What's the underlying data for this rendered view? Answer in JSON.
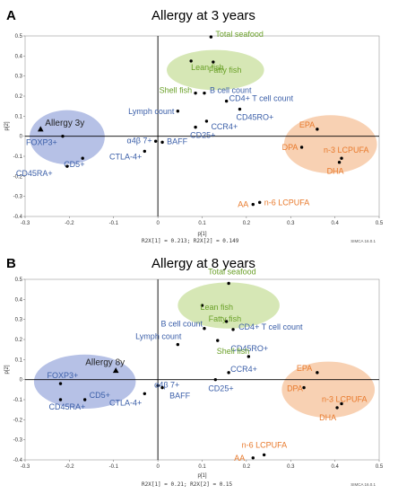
{
  "colors": {
    "blue_text": "#3a5ea8",
    "green_text": "#6aa028",
    "orange_text": "#e8792b",
    "blue_fill": "#a9b6e2",
    "green_fill": "#cfe3a8",
    "orange_fill": "#f7c9a6",
    "axis": "#000000"
  },
  "chart_data": [
    {
      "type": "scatter",
      "panel_letter": "A",
      "title": "Allergy at 3 years",
      "xlabel": "p[1]",
      "ylabel": "p[2]",
      "xlim": [
        -0.3,
        0.5
      ],
      "ylim": [
        -0.4,
        0.5
      ],
      "xticks": [
        "-0.3",
        "-0.2",
        "-0.1",
        "0",
        "0.1",
        "0.2",
        "0.3",
        "0.4",
        "0.5"
      ],
      "yticks": [
        "-0.4",
        "-0.3",
        "-0.2",
        "-0.1",
        "0",
        "0.1",
        "0.2",
        "0.3",
        "0.4",
        "0.5"
      ],
      "footnote": "R2X[1] = 0.213; R2X[2] = 0.149",
      "brand": "SIMCA 16.0.1",
      "group_marker": {
        "label": "Allergy 3y",
        "x": -0.265,
        "y": 0.035
      },
      "groups": [
        {
          "name": "allergy",
          "color": "blue",
          "cx": -0.205,
          "cy": -0.005,
          "rx": 0.085,
          "ry": 0.135
        },
        {
          "name": "fish",
          "color": "green",
          "cx": 0.13,
          "cy": 0.33,
          "rx": 0.11,
          "ry": 0.1
        },
        {
          "name": "pufa",
          "color": "orange",
          "cx": 0.39,
          "cy": -0.04,
          "rx": 0.105,
          "ry": 0.145
        }
      ],
      "points": [
        {
          "label": "FOXP3+",
          "x": -0.215,
          "y": 0.0,
          "color": "blue"
        },
        {
          "label": "CD5+",
          "x": -0.17,
          "y": -0.11,
          "color": "blue"
        },
        {
          "label": "CD45RA+",
          "x": -0.205,
          "y": -0.15,
          "color": "blue"
        },
        {
          "label": "Lymph count",
          "x": 0.045,
          "y": 0.125,
          "color": "blue"
        },
        {
          "label": "α4β 7+",
          "x": -0.005,
          "y": -0.025,
          "color": "blue"
        },
        {
          "label": "BAFF",
          "x": 0.01,
          "y": -0.03,
          "color": "blue"
        },
        {
          "label": "CTLA-4+",
          "x": -0.03,
          "y": -0.075,
          "color": "blue"
        },
        {
          "label": "B cell count",
          "x": 0.105,
          "y": 0.215,
          "color": "blue"
        },
        {
          "label": "CD4+ T cell count",
          "x": 0.155,
          "y": 0.175,
          "color": "blue"
        },
        {
          "label": "CD45RO+",
          "x": 0.185,
          "y": 0.135,
          "color": "blue"
        },
        {
          "label": "CCR4+",
          "x": 0.11,
          "y": 0.075,
          "color": "blue"
        },
        {
          "label": "CD25+",
          "x": 0.085,
          "y": 0.045,
          "color": "blue"
        },
        {
          "label": "Total seafood",
          "x": 0.12,
          "y": 0.495,
          "color": "green"
        },
        {
          "label": "Lean fish",
          "x": 0.075,
          "y": 0.375,
          "color": "green"
        },
        {
          "label": "Fatty fish",
          "x": 0.125,
          "y": 0.37,
          "color": "green"
        },
        {
          "label": "Shell fish",
          "x": 0.085,
          "y": 0.215,
          "color": "green"
        },
        {
          "label": "EPA",
          "x": 0.36,
          "y": 0.035,
          "color": "orange"
        },
        {
          "label": "DPA",
          "x": 0.325,
          "y": -0.055,
          "color": "orange"
        },
        {
          "label": "n-3 LCPUFA",
          "x": 0.415,
          "y": -0.11,
          "color": "orange"
        },
        {
          "label": "DHA",
          "x": 0.41,
          "y": -0.13,
          "color": "orange"
        },
        {
          "label": "AA",
          "x": 0.215,
          "y": -0.34,
          "color": "orange"
        },
        {
          "label": "n-6 LCPUFA",
          "x": 0.23,
          "y": -0.33,
          "color": "orange"
        }
      ]
    },
    {
      "type": "scatter",
      "panel_letter": "B",
      "title": "Allergy at 8 years",
      "xlabel": "p[1]",
      "ylabel": "p[2]",
      "xlim": [
        -0.3,
        0.5
      ],
      "ylim": [
        -0.4,
        0.5
      ],
      "xticks": [
        "-0.3",
        "-0.2",
        "-0.1",
        "0",
        "0.1",
        "0.2",
        "0.3",
        "0.4",
        "0.5"
      ],
      "yticks": [
        "-0.4",
        "-0.3",
        "-0.2",
        "-0.1",
        "0",
        "0.1",
        "0.2",
        "0.3",
        "0.4",
        "0.5"
      ],
      "footnote": "R2X[1] = 0.21; R2X[2] = 0.15",
      "brand": "SIMCA 16.0.1",
      "group_marker": {
        "label": "Allergy 8y",
        "x": -0.095,
        "y": 0.045
      },
      "groups": [
        {
          "name": "allergy",
          "color": "blue",
          "cx": -0.165,
          "cy": -0.01,
          "rx": 0.115,
          "ry": 0.135
        },
        {
          "name": "fish",
          "color": "green",
          "cx": 0.16,
          "cy": 0.37,
          "rx": 0.115,
          "ry": 0.115
        },
        {
          "name": "pufa",
          "color": "orange",
          "cx": 0.385,
          "cy": -0.05,
          "rx": 0.105,
          "ry": 0.14
        }
      ],
      "points": [
        {
          "label": "FOXP3+",
          "x": -0.22,
          "y": -0.02,
          "color": "blue"
        },
        {
          "label": "CD5+",
          "x": -0.165,
          "y": -0.1,
          "color": "blue"
        },
        {
          "label": "CD45RA+",
          "x": -0.22,
          "y": -0.1,
          "color": "blue"
        },
        {
          "label": "Lymph count",
          "x": 0.045,
          "y": 0.175,
          "color": "blue"
        },
        {
          "label": "α4β 7+",
          "x": 0.0,
          "y": -0.03,
          "color": "blue"
        },
        {
          "label": "BAFF",
          "x": 0.01,
          "y": -0.04,
          "color": "blue"
        },
        {
          "label": "CTLA-4+",
          "x": -0.03,
          "y": -0.07,
          "color": "blue"
        },
        {
          "label": "B cell count",
          "x": 0.105,
          "y": 0.255,
          "color": "blue"
        },
        {
          "label": "CD4+ T cell count",
          "x": 0.17,
          "y": 0.25,
          "color": "blue"
        },
        {
          "label": "CD45RO+",
          "x": 0.205,
          "y": 0.115,
          "color": "blue"
        },
        {
          "label": "CCR4+",
          "x": 0.16,
          "y": 0.035,
          "color": "blue"
        },
        {
          "label": "CD25+",
          "x": 0.13,
          "y": 0.0,
          "color": "blue"
        },
        {
          "label": "Total seafood",
          "x": 0.16,
          "y": 0.48,
          "color": "green"
        },
        {
          "label": "Lean fish",
          "x": 0.1,
          "y": 0.37,
          "color": "green"
        },
        {
          "label": "Fatty fish",
          "x": 0.155,
          "y": 0.29,
          "color": "green"
        },
        {
          "label": "Shell fish",
          "x": 0.135,
          "y": 0.195,
          "color": "green"
        },
        {
          "label": "EPA",
          "x": 0.36,
          "y": 0.035,
          "color": "orange"
        },
        {
          "label": "DPA",
          "x": 0.33,
          "y": -0.04,
          "color": "orange"
        },
        {
          "label": "n-3 LCPUFA",
          "x": 0.415,
          "y": -0.12,
          "color": "orange"
        },
        {
          "label": "DHA",
          "x": 0.405,
          "y": -0.14,
          "color": "orange"
        },
        {
          "label": "AA",
          "x": 0.215,
          "y": -0.39,
          "color": "orange"
        },
        {
          "label": "n-6 LCPUFA",
          "x": 0.24,
          "y": -0.375,
          "color": "orange"
        }
      ]
    }
  ]
}
